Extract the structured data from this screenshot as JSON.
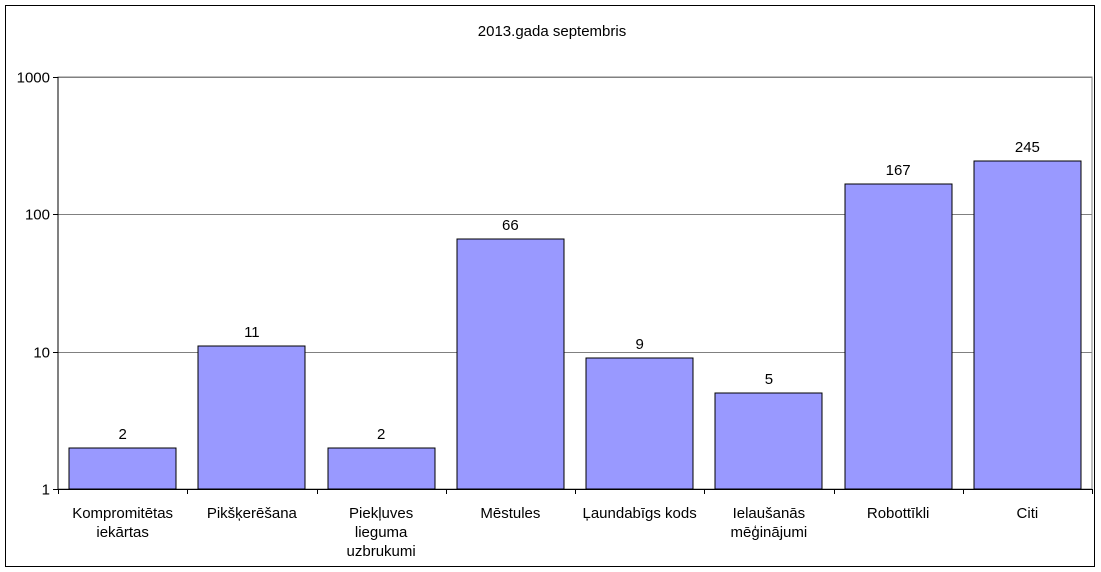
{
  "chart_data": {
    "type": "bar",
    "title": "2013.gada septembris",
    "xlabel": "",
    "ylabel": "",
    "yscale": "log",
    "ylim": [
      1,
      1000
    ],
    "yticks": [
      "1",
      "10",
      "100",
      "1000"
    ],
    "grid": true,
    "legend": "none",
    "bar_color": "#9999ff",
    "categories": [
      [
        "Kompromitētas",
        "iekārtas"
      ],
      [
        "Pikšķerēšana"
      ],
      [
        "Piekļuves",
        "lieguma",
        "uzbrukumi"
      ],
      [
        "Mēstules"
      ],
      [
        "Ļaundabīgs kods"
      ],
      [
        "Ielaušanās",
        "mēģinājumi"
      ],
      [
        "Robottīkli"
      ],
      [
        "Citi"
      ]
    ],
    "values": [
      2,
      11,
      2,
      66,
      9,
      5,
      167,
      245
    ],
    "value_labels": [
      "2",
      "11",
      "2",
      "66",
      "9",
      "5",
      "167",
      "245"
    ]
  }
}
